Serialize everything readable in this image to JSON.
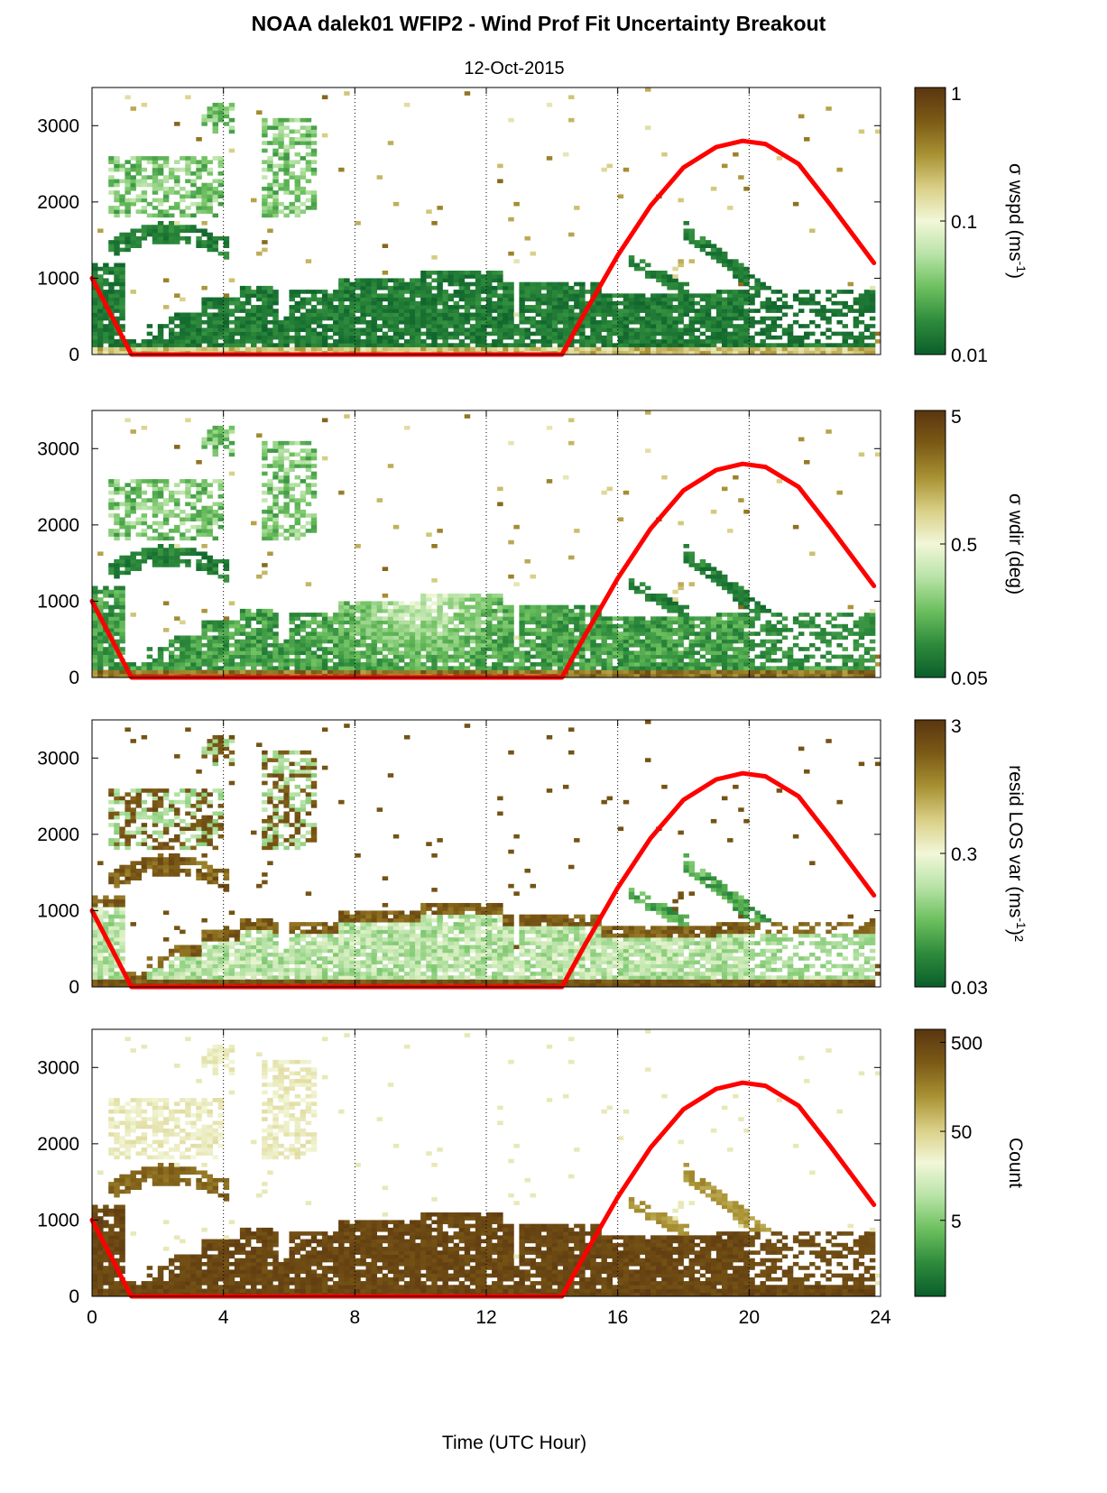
{
  "figure": {
    "title": "NOAA dalek01 WFIP2 - Wind Prof Fit Uncertainty Breakout",
    "subtitle": "12-Oct-2015",
    "xlabel": "Time (UTC Hour)"
  },
  "colors": {
    "cmap": [
      "#0a5e2a",
      "#2e8b3c",
      "#6cbf5e",
      "#b8e3a7",
      "#f2f7d8",
      "#d9cf86",
      "#a89133",
      "#7b5a16",
      "#5a3510"
    ],
    "sun_curve": "#ff0000"
  },
  "chart_data": [
    {
      "type": "heatmap",
      "title": "",
      "xlabel": "",
      "ylabel": "",
      "xlim": [
        0,
        24
      ],
      "ylim": [
        0,
        3500
      ],
      "xticks": [
        "0",
        "4",
        "8",
        "12",
        "16",
        "20",
        "24"
      ],
      "yticks": [
        "0",
        "1000",
        "2000",
        "3000"
      ],
      "colorbar": {
        "label": "σ wspd (ms",
        "label_sup": "-1",
        "label_end": ")",
        "ticks": [
          "0.01",
          "0.1",
          "1"
        ],
        "scale": "log",
        "range": [
          0.01,
          1
        ]
      },
      "grid": "dotted vertical lines at x = 4, 8, 12, 16, 20",
      "overlay_series": {
        "name": "",
        "x": [
          0,
          1.2,
          14.3,
          15,
          16,
          17,
          18,
          19,
          19.8,
          20.5,
          21.5,
          22.5,
          23.8
        ],
        "y": [
          1000,
          0,
          0,
          550,
          1300,
          1950,
          2450,
          2720,
          2800,
          2760,
          2500,
          1950,
          1200
        ]
      }
    },
    {
      "type": "heatmap",
      "title": "",
      "xlabel": "",
      "ylabel": "",
      "xlim": [
        0,
        24
      ],
      "ylim": [
        0,
        3500
      ],
      "xticks": [
        "0",
        "4",
        "8",
        "12",
        "16",
        "20",
        "24"
      ],
      "yticks": [
        "0",
        "1000",
        "2000",
        "3000"
      ],
      "colorbar": {
        "label": "σ wdir (deg)",
        "label_sup": "",
        "label_end": "",
        "ticks": [
          "0.05",
          "0.5",
          "5"
        ],
        "scale": "log",
        "range": [
          0.05,
          5
        ]
      },
      "grid": "dotted vertical lines at x = 4, 8, 12, 16, 20",
      "overlay_series": {
        "name": "",
        "x": [
          0,
          1.2,
          14.3,
          15,
          16,
          17,
          18,
          19,
          19.8,
          20.5,
          21.5,
          22.5,
          23.8
        ],
        "y": [
          1000,
          0,
          0,
          550,
          1300,
          1950,
          2450,
          2720,
          2800,
          2760,
          2500,
          1950,
          1200
        ]
      }
    },
    {
      "type": "heatmap",
      "title": "",
      "xlabel": "",
      "ylabel": "",
      "xlim": [
        0,
        24
      ],
      "ylim": [
        0,
        3500
      ],
      "xticks": [
        "0",
        "4",
        "8",
        "12",
        "16",
        "20",
        "24"
      ],
      "yticks": [
        "0",
        "1000",
        "2000",
        "3000"
      ],
      "colorbar": {
        "label": "resid LOS var (ms",
        "label_sup": "-1",
        "label_end": ")²",
        "ticks": [
          "0.03",
          "0.3",
          "3"
        ],
        "scale": "log",
        "range": [
          0.03,
          3
        ]
      },
      "grid": "dotted vertical lines at x = 4, 8, 12, 16, 20",
      "overlay_series": {
        "name": "",
        "x": [
          0,
          1.2,
          14.3,
          15,
          16,
          17,
          18,
          19,
          19.8,
          20.5,
          21.5,
          22.5,
          23.8
        ],
        "y": [
          1000,
          0,
          0,
          550,
          1300,
          1950,
          2450,
          2720,
          2800,
          2760,
          2500,
          1950,
          1200
        ]
      }
    },
    {
      "type": "heatmap",
      "title": "",
      "xlabel": "Time (UTC Hour)",
      "ylabel": "",
      "xlim": [
        0,
        24
      ],
      "ylim": [
        0,
        3500
      ],
      "xticks": [
        "0",
        "4",
        "8",
        "12",
        "16",
        "20",
        "24"
      ],
      "yticks": [
        "0",
        "1000",
        "2000",
        "3000"
      ],
      "colorbar": {
        "label": "Count",
        "label_sup": "",
        "label_end": "",
        "ticks": [
          "5",
          "50",
          "500"
        ],
        "scale": "log",
        "range": [
          0.7,
          700
        ]
      },
      "grid": "dotted vertical lines at x = 4, 8, 12, 16, 20",
      "overlay_series": {
        "name": "",
        "x": [
          0,
          1.2,
          14.3,
          15,
          16,
          17,
          18,
          19,
          19.8,
          20.5,
          21.5,
          22.5,
          23.8
        ],
        "y": [
          1000,
          0,
          0,
          550,
          1300,
          1950,
          2450,
          2720,
          2800,
          2760,
          2500,
          1950,
          1200
        ]
      }
    }
  ]
}
